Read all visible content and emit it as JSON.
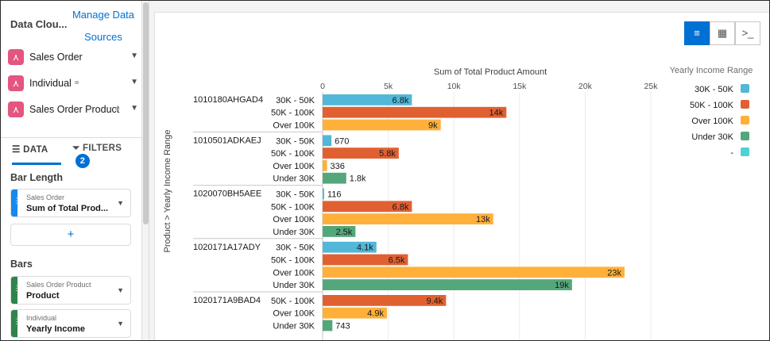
{
  "sidebar": {
    "title": "Data Clou...",
    "manage": "Manage Data Sources",
    "objects": [
      {
        "label": "Sales Order",
        "icon": "data-object-icon",
        "linked": false
      },
      {
        "label": "Individual",
        "icon": "data-object-icon",
        "linked": true
      },
      {
        "label": "Sales Order Product",
        "icon": "data-object-icon",
        "linked": true
      }
    ],
    "tabs": {
      "data": "DATA",
      "filters": "FILTERS",
      "filters_count": "2"
    },
    "bar_length": {
      "title": "Bar Length",
      "field": {
        "object": "Sales Order",
        "value": "Sum of Total Prod...",
        "color": "#1589ee"
      },
      "add": "+"
    },
    "bars": {
      "title": "Bars",
      "fields": [
        {
          "object": "Sales Order Product",
          "value": "Product",
          "color": "#2e844a"
        },
        {
          "object": "Individual",
          "value": "Yearly Income",
          "color": "#2e844a"
        }
      ]
    }
  },
  "toolbar": {
    "views": [
      {
        "name": "bar-chart-view-icon",
        "active": true
      },
      {
        "name": "table-view-icon",
        "active": false
      },
      {
        "name": "query-view-icon",
        "active": false
      }
    ]
  },
  "legend": {
    "title": "Yearly Income Range",
    "items": [
      {
        "label": "30K - 50K",
        "color": "#52b7d8"
      },
      {
        "label": "50K - 100K",
        "color": "#e16032"
      },
      {
        "label": "Over 100K",
        "color": "#ffb03b"
      },
      {
        "label": "Under 30K",
        "color": "#54a77b"
      },
      {
        "label": "-",
        "color": "#4fd2d2"
      }
    ]
  },
  "chart_data": {
    "type": "bar",
    "orientation": "horizontal",
    "title": "Sum of Total Product Amount",
    "ylabel": "Product > Yearly Income Range",
    "xlim": [
      0,
      25000
    ],
    "x_ticks": [
      "0",
      "5k",
      "10k",
      "15k",
      "20k",
      "25k"
    ],
    "grid": true,
    "legend_position": "right",
    "groups": [
      {
        "product": "1010180AHGAD4",
        "bars": [
          {
            "category": "30K - 50K",
            "value": 6800,
            "label": "6.8k"
          },
          {
            "category": "50K - 100K",
            "value": 14000,
            "label": "14k"
          },
          {
            "category": "Over 100K",
            "value": 9000,
            "label": "9k"
          }
        ]
      },
      {
        "product": "1010501ADKAEJ",
        "bars": [
          {
            "category": "30K - 50K",
            "value": 670,
            "label": "670"
          },
          {
            "category": "50K - 100K",
            "value": 5800,
            "label": "5.8k"
          },
          {
            "category": "Over 100K",
            "value": 336,
            "label": "336"
          },
          {
            "category": "Under 30K",
            "value": 1800,
            "label": "1.8k"
          }
        ]
      },
      {
        "product": "1020070BH5AEE",
        "bars": [
          {
            "category": "30K - 50K",
            "value": 116,
            "label": "116"
          },
          {
            "category": "50K - 100K",
            "value": 6800,
            "label": "6.8k"
          },
          {
            "category": "Over 100K",
            "value": 13000,
            "label": "13k"
          },
          {
            "category": "Under 30K",
            "value": 2500,
            "label": "2.5k"
          }
        ]
      },
      {
        "product": "1020171A17ADY",
        "bars": [
          {
            "category": "30K - 50K",
            "value": 4100,
            "label": "4.1k"
          },
          {
            "category": "50K - 100K",
            "value": 6500,
            "label": "6.5k"
          },
          {
            "category": "Over 100K",
            "value": 23000,
            "label": "23k"
          },
          {
            "category": "Under 30K",
            "value": 19000,
            "label": "19k"
          }
        ]
      },
      {
        "product": "1020171A9BAD4",
        "bars": [
          {
            "category": "50K - 100K",
            "value": 9400,
            "label": "9.4k"
          },
          {
            "category": "Over 100K",
            "value": 4900,
            "label": "4.9k"
          },
          {
            "category": "Under 30K",
            "value": 743,
            "label": "743"
          }
        ]
      }
    ]
  }
}
